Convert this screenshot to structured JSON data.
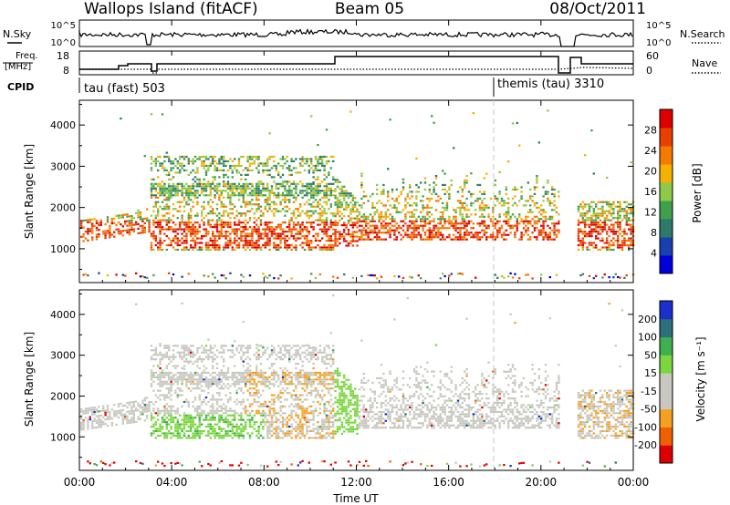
{
  "header": {
    "station": "Wallops Island (fitACF)",
    "beam": "Beam 05",
    "date": "08/Oct/2011"
  },
  "summary_panels": {
    "nsky_label": "N.Sky",
    "nsky_ticks": [
      "10^5",
      "10^0"
    ],
    "nsearch_label": "N.Search",
    "nsearch_ticks": [
      "10^5",
      "10^0"
    ],
    "freq_label_line1": "Freq.",
    "freq_label_line2": "[MHz]",
    "freq_ticks": [
      "18",
      "8"
    ],
    "nave_label": "Nave",
    "nave_ticks": [
      "60",
      "0"
    ],
    "cpid_label": "CPID",
    "cpid_segments": [
      {
        "label": "tau (fast) 503",
        "start_hour": 0
      },
      {
        "label": "themis (tau) 3310",
        "start_hour": 18
      }
    ]
  },
  "chart_data": [
    {
      "type": "heatmap",
      "name": "power-panel",
      "ylabel": "Slant Range [km]",
      "ylim": [
        180,
        4600
      ],
      "yticks": [
        1000,
        2000,
        3000,
        4000
      ],
      "xlim_hours": [
        0,
        24
      ],
      "colorbar": {
        "label": "Power [dB]",
        "ticks": [
          "28",
          "24",
          "20",
          "16",
          "12",
          "8",
          "4"
        ],
        "range": [
          0,
          30
        ],
        "colors": [
          "#0000dd",
          "#1a3fae",
          "#2d7a6a",
          "#3f9f4e",
          "#8fc94a",
          "#f5b000",
          "#f57a00",
          "#e84000",
          "#dd0000"
        ]
      }
    },
    {
      "type": "heatmap",
      "name": "velocity-panel",
      "ylabel": "Slant Range [km]",
      "ylim": [
        180,
        4600
      ],
      "yticks": [
        1000,
        2000,
        3000,
        4000
      ],
      "xlim_hours": [
        0,
        24
      ],
      "colorbar": {
        "label": "Velocity [m s⁻¹]",
        "ticks": [
          "200",
          "100",
          "50",
          "15",
          "-15",
          "-50",
          "-100",
          "-200"
        ],
        "range": [
          -250,
          250
        ],
        "colors": [
          "#dd0000",
          "#f06000",
          "#f5a020",
          "#c8c8c0",
          "#c8c8c0",
          "#7cd640",
          "#3faf4f",
          "#2d6f7a",
          "#1a2fcc"
        ]
      }
    }
  ],
  "time_axis": {
    "label": "Time UT",
    "ticks": [
      "00:00",
      "04:00",
      "08:00",
      "12:00",
      "16:00",
      "20:00",
      "00:00"
    ]
  }
}
